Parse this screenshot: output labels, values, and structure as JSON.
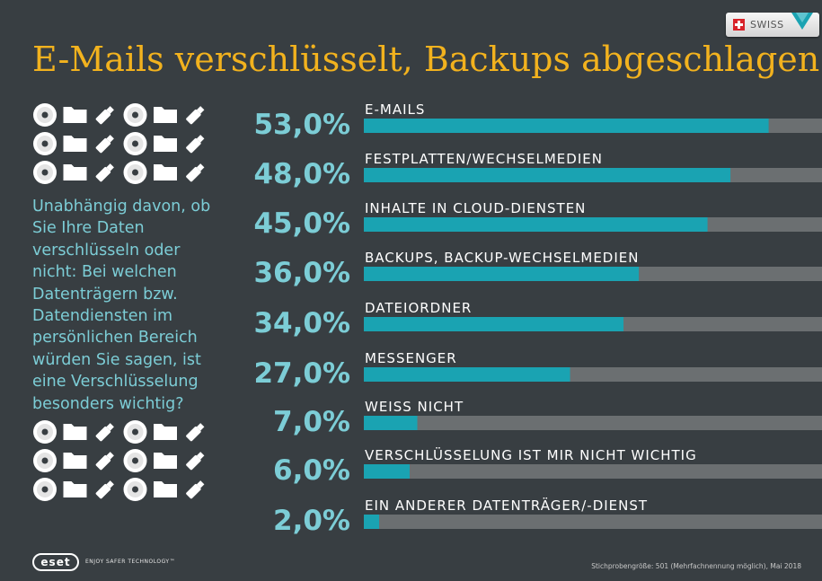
{
  "title": "E-Mails verschlüsselt, Backups abgeschlagen",
  "badge": {
    "label": "SWISS",
    "flag_icon": "swiss-flag-icon",
    "arrow_icon": "download-arrow-icon"
  },
  "question": "Unabhängig davon, ob Sie Ihre Daten verschlüsseln oder nicht: Bei welchen Datenträgern bzw. Datendiensten im persönlichen Bereich würden Sie sagen, ist eine Verschlüsselung besonders wichtig?",
  "icon_pattern": [
    "disc-icon",
    "folder-icon",
    "usb-stick-icon",
    "disc-icon",
    "folder-icon",
    "usb-stick-icon"
  ],
  "colors": {
    "background": "#383e42",
    "title": "#f2b21e",
    "accent": "#1aa3b2",
    "track": "#6b6f71",
    "percent": "#7ccdd6"
  },
  "chart_data": {
    "type": "bar",
    "orientation": "horizontal",
    "xlim": [
      0,
      100
    ],
    "categories": [
      "E-MAILS",
      "FESTPLATTEN/WECHSELMEDIEN",
      "INHALTE IN CLOUD-DIENSTEN",
      "BACKUPS, BACKUP-WECHSELMEDIEN",
      "DATEIORDNER",
      "MESSENGER",
      "WEISS NICHT",
      "VERSCHLÜSSELUNG IST MIR NICHT WICHTIG",
      "EIN ANDERER DATENTRÄGER/-DIENST"
    ],
    "values": [
      53.0,
      48.0,
      45.0,
      36.0,
      34.0,
      27.0,
      7.0,
      6.0,
      2.0
    ],
    "value_labels": [
      "53,0%",
      "48,0%",
      "45,0%",
      "36,0%",
      "34,0%",
      "27,0%",
      "7,0%",
      "6,0%",
      "2,0%"
    ]
  },
  "footer": {
    "logo": "eset",
    "tagline": "ENJOY SAFER TECHNOLOGY™",
    "note": "Stichprobengröße: 501 (Mehrfachnennung möglich), Mai 2018"
  }
}
